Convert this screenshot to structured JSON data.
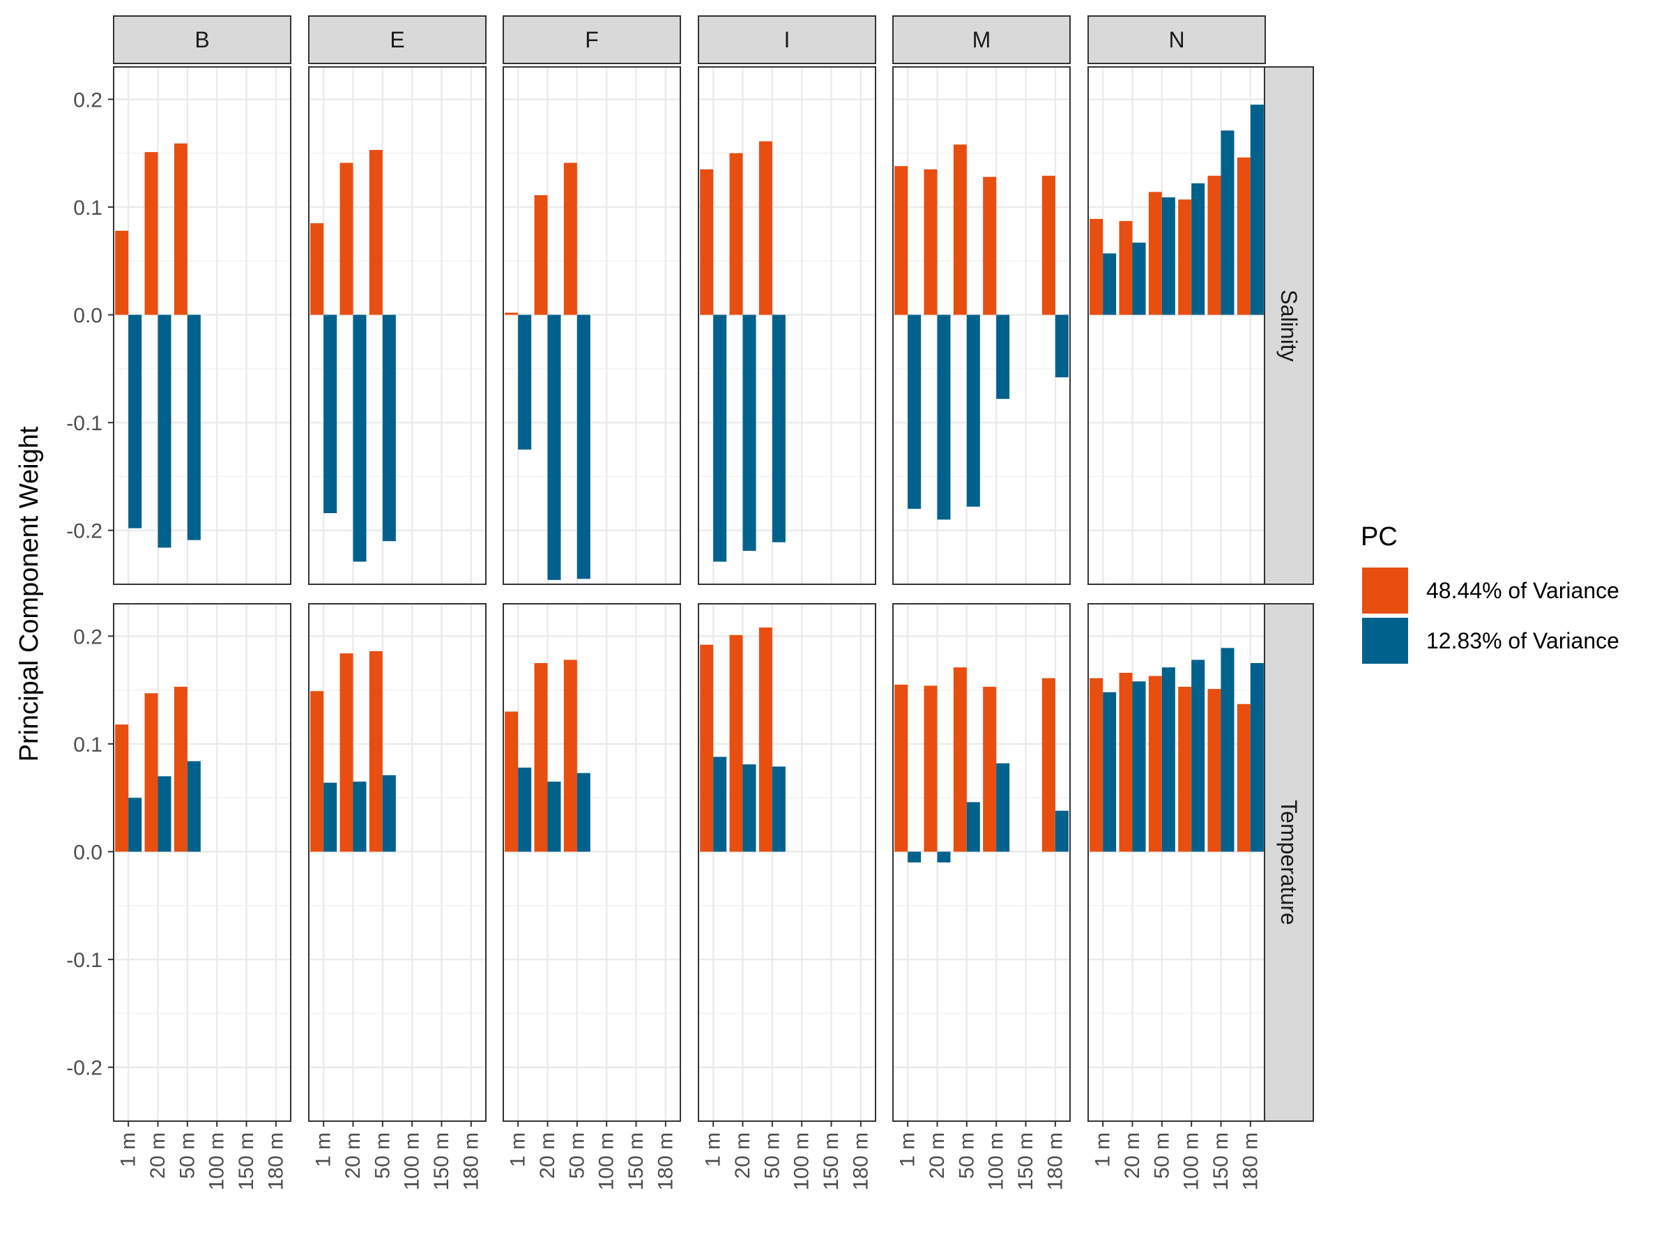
{
  "chart_data": {
    "type": "bar",
    "layout": "facet_grid",
    "ylabel": "Principal Component Weight",
    "xlabel": "",
    "ylim": [
      -0.25,
      0.23
    ],
    "yticks": [
      0.2,
      0.1,
      0.0,
      -0.1,
      -0.2
    ],
    "ytick_labels": [
      "0.2",
      "0.1",
      "0.0",
      "-0.1",
      "-0.2"
    ],
    "categories": [
      "1 m",
      "20 m",
      "50 m",
      "100 m",
      "150 m",
      "180 m"
    ],
    "col_facets": [
      "B",
      "E",
      "F",
      "I",
      "M",
      "N"
    ],
    "row_facets": [
      "Salinity",
      "Temperature"
    ],
    "grid": true,
    "legend": {
      "title": "PC",
      "position": "right",
      "entries": [
        "48.44% of Variance",
        "12.83% of Variance"
      ]
    },
    "colors": {
      "pc1": "#E84E0F",
      "pc2": "#00618C"
    },
    "series": [
      {
        "name": "48.44% of Variance",
        "key": "pc1"
      },
      {
        "name": "12.83% of Variance",
        "key": "pc2"
      }
    ],
    "panels": [
      {
        "row": "Salinity",
        "col": "B",
        "pc1": [
          0.078,
          0.151,
          0.159,
          null,
          null,
          null
        ],
        "pc2": [
          -0.198,
          -0.216,
          -0.209,
          null,
          null,
          null
        ]
      },
      {
        "row": "Salinity",
        "col": "E",
        "pc1": [
          0.085,
          0.141,
          0.153,
          null,
          null,
          null
        ],
        "pc2": [
          -0.184,
          -0.229,
          -0.21,
          null,
          null,
          null
        ]
      },
      {
        "row": "Salinity",
        "col": "F",
        "pc1": [
          0.002,
          0.111,
          0.141,
          null,
          null,
          null
        ],
        "pc2": [
          -0.125,
          -0.246,
          -0.245,
          null,
          null,
          null
        ]
      },
      {
        "row": "Salinity",
        "col": "I",
        "pc1": [
          0.135,
          0.15,
          0.161,
          null,
          null,
          null
        ],
        "pc2": [
          -0.229,
          -0.219,
          -0.211,
          null,
          null,
          null
        ]
      },
      {
        "row": "Salinity",
        "col": "M",
        "pc1": [
          0.138,
          0.135,
          0.158,
          0.128,
          null,
          0.129
        ],
        "pc2": [
          -0.18,
          -0.19,
          -0.178,
          -0.078,
          null,
          -0.058
        ]
      },
      {
        "row": "Salinity",
        "col": "N",
        "pc1": [
          0.089,
          0.087,
          0.114,
          0.107,
          0.129,
          0.146
        ],
        "pc2": [
          0.057,
          0.067,
          0.109,
          0.122,
          0.171,
          0.195
        ]
      },
      {
        "row": "Temperature",
        "col": "B",
        "pc1": [
          0.118,
          0.147,
          0.153,
          null,
          null,
          null
        ],
        "pc2": [
          0.05,
          0.07,
          0.084,
          null,
          null,
          null
        ]
      },
      {
        "row": "Temperature",
        "col": "E",
        "pc1": [
          0.149,
          0.184,
          0.186,
          null,
          null,
          null
        ],
        "pc2": [
          0.064,
          0.065,
          0.071,
          null,
          null,
          null
        ]
      },
      {
        "row": "Temperature",
        "col": "F",
        "pc1": [
          0.13,
          0.175,
          0.178,
          null,
          null,
          null
        ],
        "pc2": [
          0.078,
          0.065,
          0.073,
          null,
          null,
          null
        ]
      },
      {
        "row": "Temperature",
        "col": "I",
        "pc1": [
          0.192,
          0.201,
          0.208,
          null,
          null,
          null
        ],
        "pc2": [
          0.088,
          0.081,
          0.079,
          null,
          null,
          null
        ]
      },
      {
        "row": "Temperature",
        "col": "M",
        "pc1": [
          0.155,
          0.154,
          0.171,
          0.153,
          null,
          0.161
        ],
        "pc2": [
          -0.01,
          -0.01,
          0.046,
          0.082,
          null,
          0.038
        ]
      },
      {
        "row": "Temperature",
        "col": "N",
        "pc1": [
          0.161,
          0.166,
          0.163,
          0.153,
          0.151,
          0.137
        ],
        "pc2": [
          0.148,
          0.158,
          0.171,
          0.178,
          0.189,
          0.175
        ]
      }
    ]
  }
}
